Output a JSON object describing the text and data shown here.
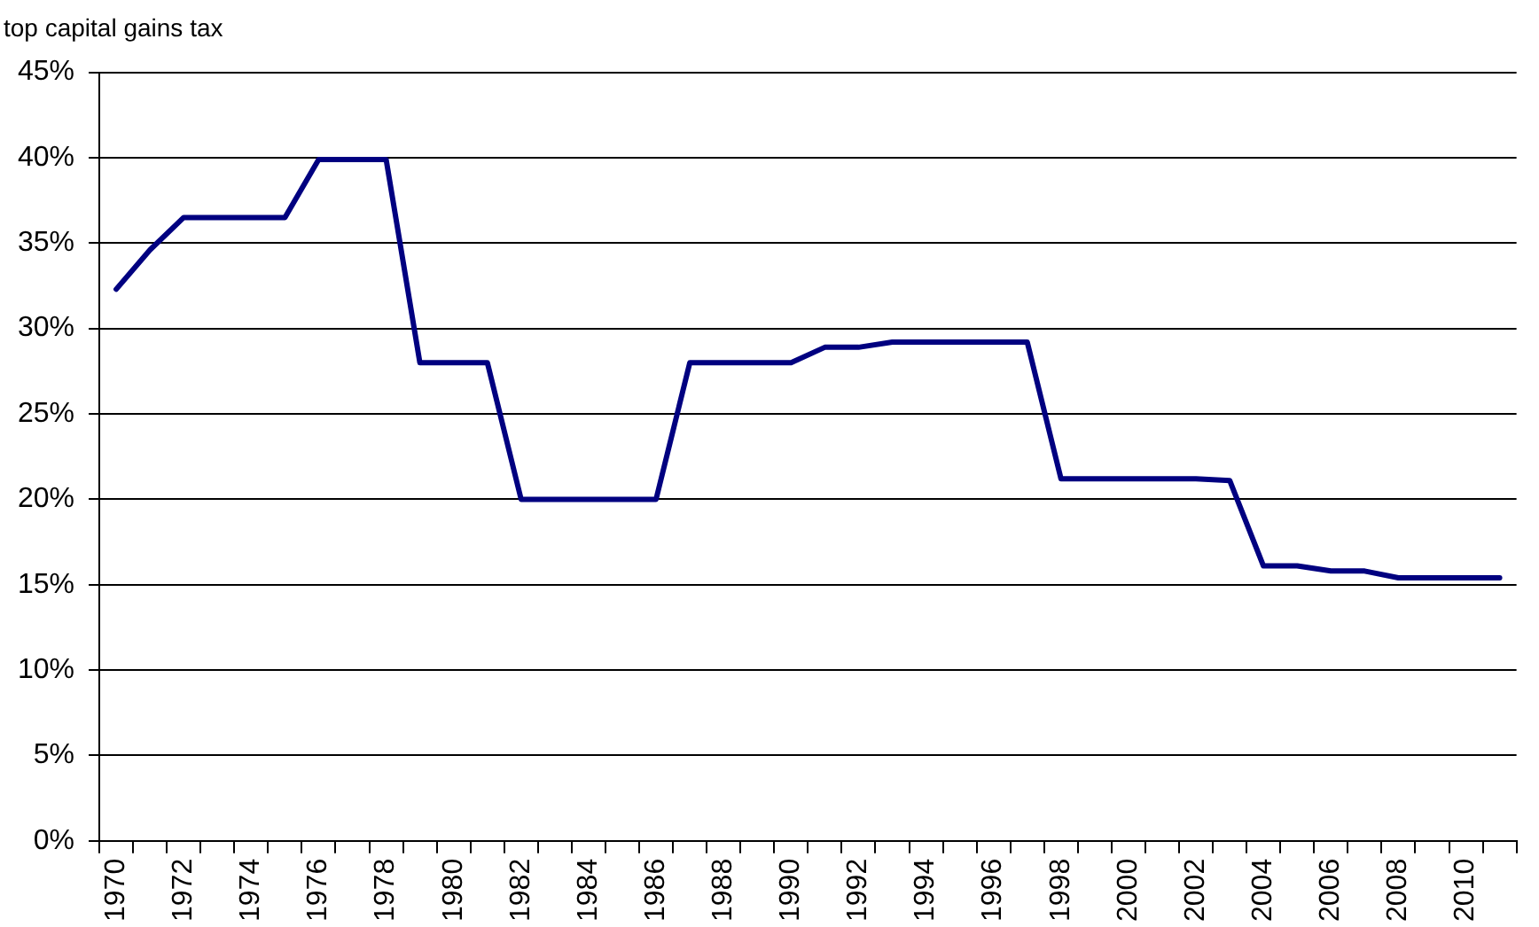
{
  "chart_data": {
    "type": "line",
    "title": "top capital gains tax",
    "categories": [
      "1970",
      null,
      "1972",
      null,
      "1974",
      null,
      "1976",
      null,
      "1978",
      null,
      "1980",
      null,
      "1982",
      null,
      "1984",
      null,
      "1986",
      null,
      "1988",
      null,
      "1990",
      null,
      "1992",
      null,
      "1994",
      null,
      "1996",
      null,
      "1998",
      null,
      "2000",
      null,
      "2002",
      null,
      "2004",
      null,
      "2006",
      null,
      "2008",
      null,
      "2010",
      null
    ],
    "series": [
      {
        "color": "#000080",
        "values": [
          32.3,
          34.6,
          36.5,
          36.5,
          36.5,
          36.5,
          39.9,
          39.9,
          39.9,
          28,
          28,
          28,
          20,
          20,
          20,
          20,
          20,
          28,
          28,
          28,
          28,
          28.9,
          28.9,
          29.2,
          29.2,
          29.2,
          29.2,
          29.2,
          21.2,
          21.2,
          21.2,
          21.2,
          21.2,
          21.1,
          16.1,
          16.1,
          15.8,
          15.8,
          15.4,
          15.4,
          15.4,
          15.4
        ]
      }
    ],
    "ylim": [
      0,
      45
    ],
    "yticks": [
      {
        "value": 0,
        "label": "0%"
      },
      {
        "value": 5,
        "label": "5%"
      },
      {
        "value": 10,
        "label": "10%"
      },
      {
        "value": 15,
        "label": "15%"
      },
      {
        "value": 20,
        "label": "20%"
      },
      {
        "value": 25,
        "label": "25%"
      },
      {
        "value": 30,
        "label": "30%"
      },
      {
        "value": 35,
        "label": "35%"
      },
      {
        "value": 40,
        "label": "40%"
      },
      {
        "value": 45,
        "label": "45%"
      }
    ],
    "grid": "y",
    "legend": false,
    "marker": "none",
    "line_style": "solid"
  }
}
